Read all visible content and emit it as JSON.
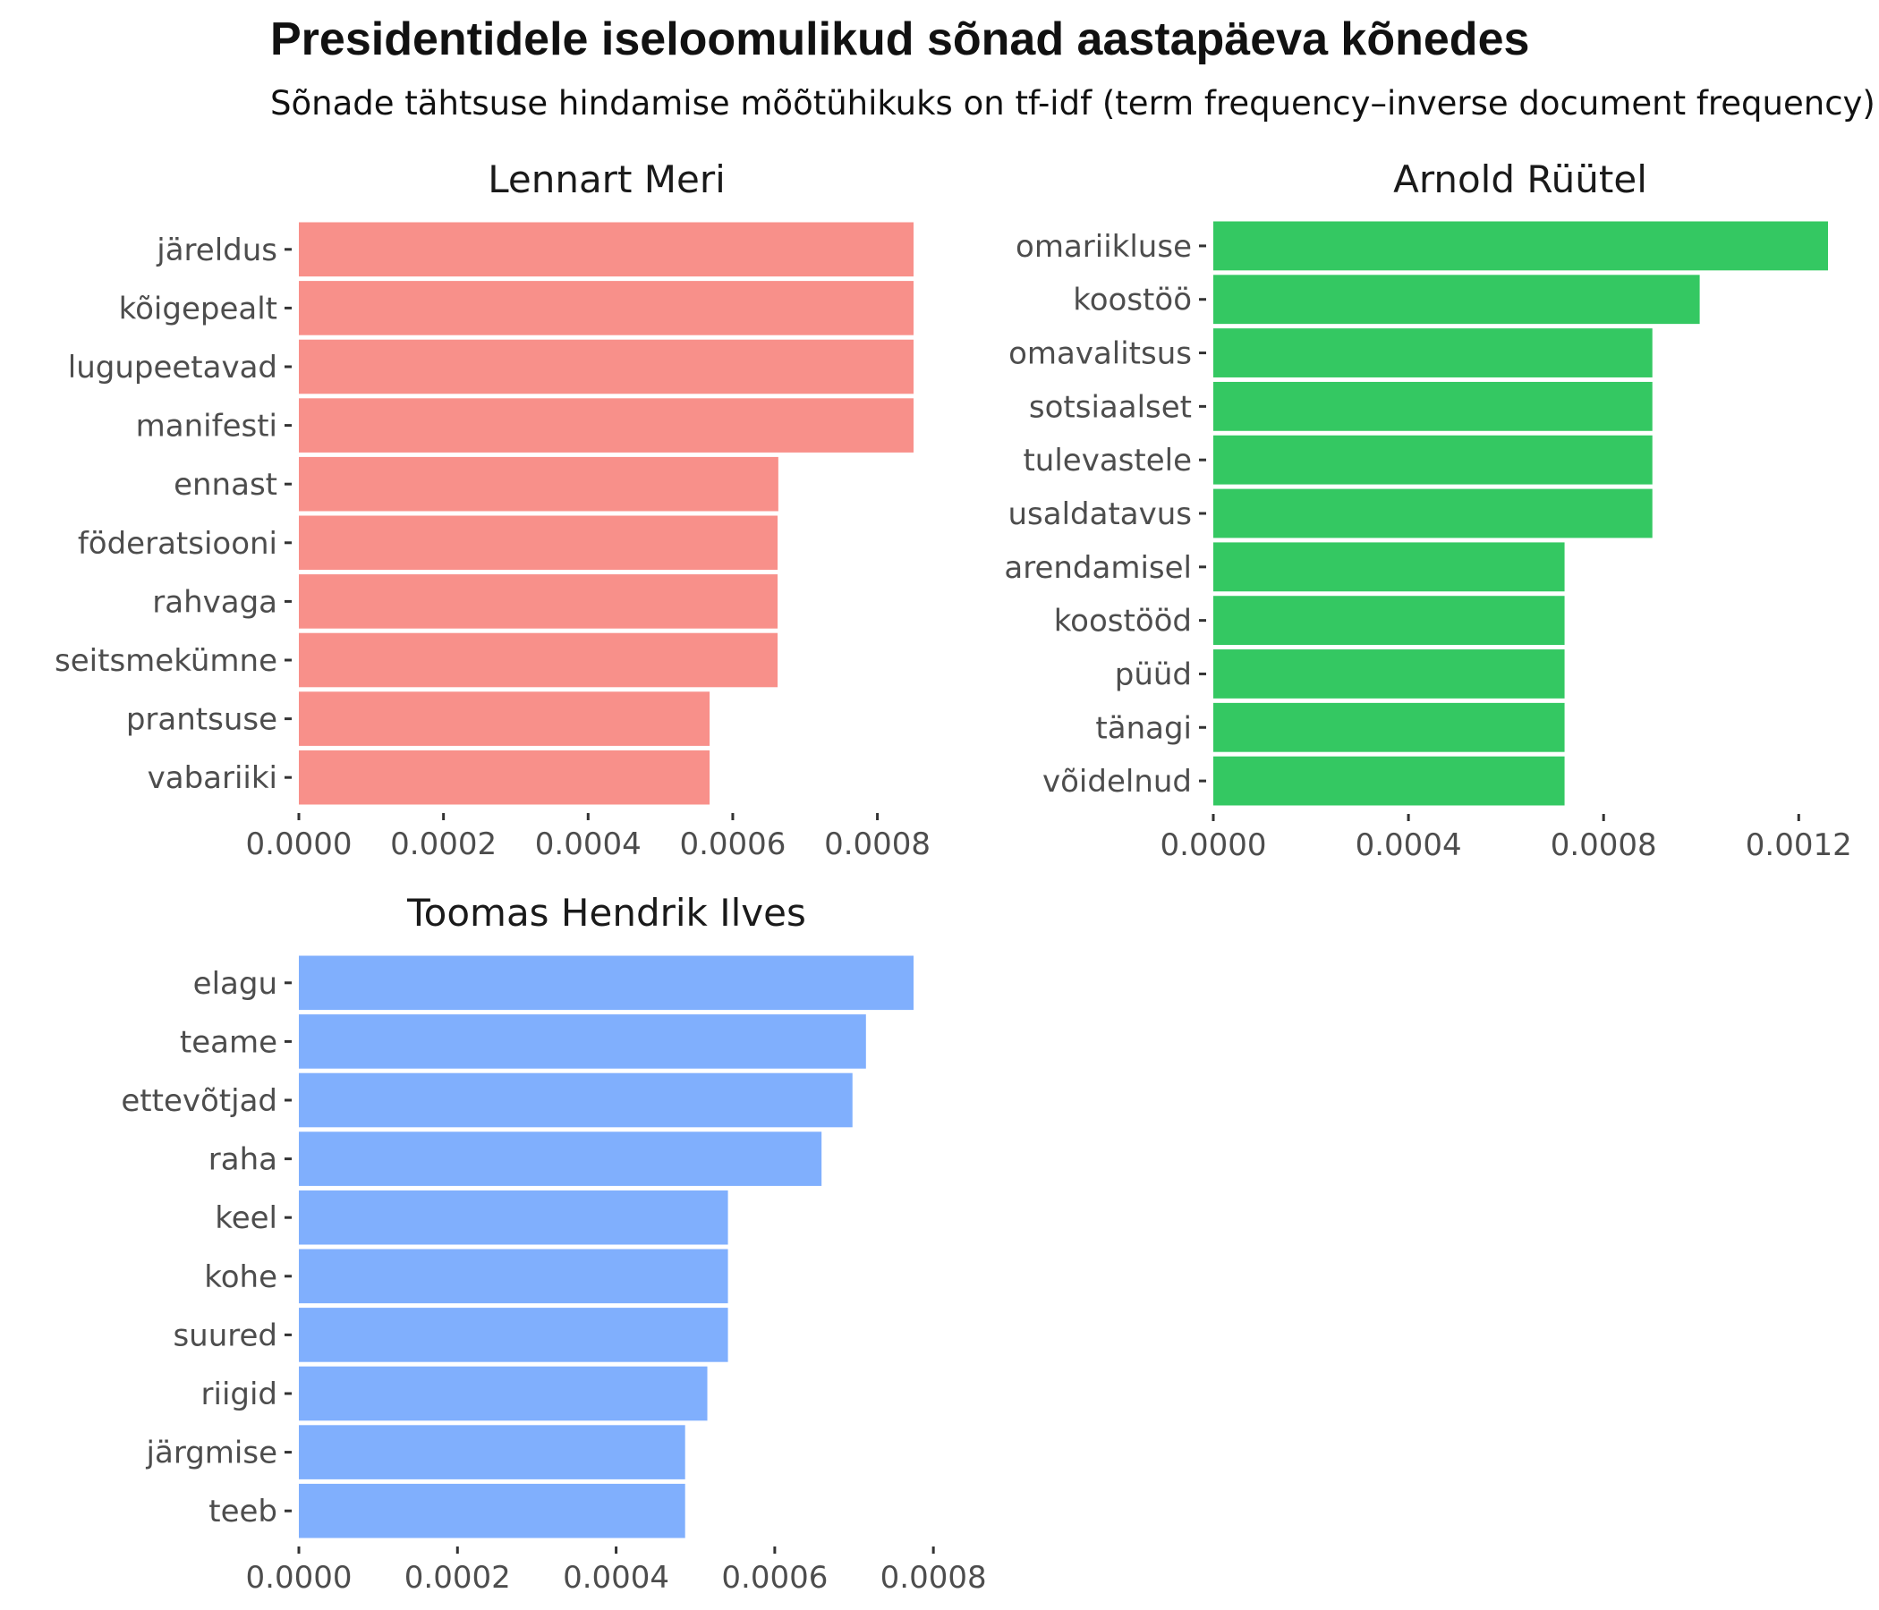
{
  "title": "Presidentidele iseloomulikud sõnad aastapäeva kõnedes",
  "subtitle": "Sõnade tähtsuse hindamise mõõtühikuks on tf-idf (term frequency–inverse document frequency)",
  "chart_data": [
    {
      "type": "bar",
      "orientation": "horizontal",
      "title": "Lennart Meri",
      "color": "#F8908A",
      "categories": [
        "järeldus",
        "kõigepealt",
        "lugupeetavad",
        "manifesti",
        "ennast",
        "föderatsiooni",
        "rahvaga",
        "seitsmekümne",
        "prantsuse",
        "vabariiki"
      ],
      "values": [
        0.00085,
        0.00085,
        0.00085,
        0.00085,
        0.000663,
        0.000662,
        0.000662,
        0.000662,
        0.000568,
        0.000568
      ],
      "xlim": [
        0,
        0.00085
      ],
      "ticks": [
        0,
        0.0002,
        0.0004,
        0.0006,
        0.0008
      ],
      "tick_labels": [
        "0.0000",
        "0.0002",
        "0.0004",
        "0.0006",
        "0.0008"
      ]
    },
    {
      "type": "bar",
      "orientation": "horizontal",
      "title": "Arnold Rüütel",
      "color": "#34C862",
      "categories": [
        "omariikluse",
        "koostöö",
        "omavalitsus",
        "sotsiaalset",
        "tulevastele",
        "usaldatavus",
        "arendamisel",
        "koostööd",
        "püüd",
        "tänagi",
        "võidelnud"
      ],
      "values": [
        0.00126,
        0.000997,
        0.0009,
        0.0009,
        0.0009,
        0.0009,
        0.00072,
        0.00072,
        0.00072,
        0.00072,
        0.00072
      ],
      "xlim": [
        0,
        0.00126
      ],
      "ticks": [
        0,
        0.0004,
        0.0008,
        0.0012
      ],
      "tick_labels": [
        "0.0000",
        "0.0004",
        "0.0008",
        "0.0012"
      ]
    },
    {
      "type": "bar",
      "orientation": "horizontal",
      "title": "Toomas Hendrik Ilves",
      "color": "#80AFFD",
      "categories": [
        "elagu",
        "teame",
        "ettevõtjad",
        "raha",
        "keel",
        "kohe",
        "suured",
        "riigid",
        "järgmise",
        "teeb"
      ],
      "values": [
        0.000775,
        0.000715,
        0.000698,
        0.000659,
        0.000541,
        0.000541,
        0.000541,
        0.000515,
        0.000487,
        0.000487
      ],
      "xlim": [
        0,
        0.000775
      ],
      "ticks": [
        0,
        0.0002,
        0.0004,
        0.0006,
        0.0008
      ],
      "tick_labels": [
        "0.0000",
        "0.0002",
        "0.0004",
        "0.0006",
        "0.0008"
      ]
    }
  ]
}
